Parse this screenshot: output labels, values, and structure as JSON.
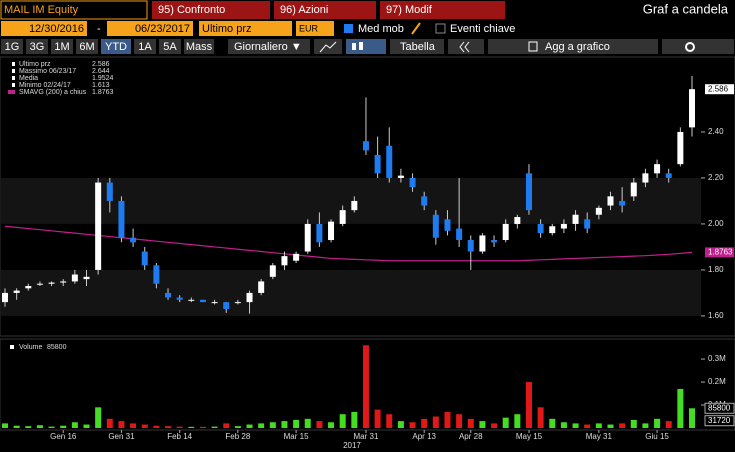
{
  "toolbar": {
    "security": "MAIL IM Equity",
    "tabs": [
      "95) Confronto",
      "96) Azioni",
      "97) Modif"
    ],
    "title": "Graf a candela",
    "start_date": "12/30/2016",
    "separator": "-",
    "end_date": "06/23/2017",
    "field": "Ultimo prz",
    "currency": "EUR",
    "moving_avg": "Med mob",
    "key_events": "Eventi chiave",
    "periods": [
      "1G",
      "3G",
      "1M",
      "6M",
      "YTD",
      "1A",
      "5A",
      "Mass"
    ],
    "frequency": "Giornaliero ▼",
    "table": "Tabella",
    "add": "Agg a grafico"
  },
  "chart_data": {
    "type": "candlestick",
    "categories": [
      null,
      null,
      null,
      null,
      null,
      "Gen 16",
      null,
      null,
      null,
      null,
      "Gen 31",
      null,
      null,
      null,
      null,
      "Feb 14",
      null,
      null,
      null,
      null,
      "Feb 28",
      null,
      null,
      null,
      null,
      "Mar 15",
      null,
      null,
      null,
      null,
      null,
      "Mar 31",
      null,
      null,
      null,
      null,
      "Apr 13",
      null,
      null,
      null,
      "Apr 28",
      null,
      null,
      null,
      null,
      "May 15",
      null,
      null,
      null,
      null,
      null,
      "May 31",
      null,
      null,
      null,
      null,
      "Giu 15",
      null,
      null,
      null
    ],
    "year_label": "2017",
    "open": [
      1.66,
      1.7,
      1.72,
      1.74,
      1.74,
      1.745,
      1.75,
      1.76,
      1.8,
      2.18,
      2.1,
      1.94,
      1.88,
      1.82,
      1.7,
      1.68,
      1.67,
      1.67,
      1.66,
      1.66,
      1.66,
      1.66,
      1.7,
      1.77,
      1.82,
      1.84,
      1.88,
      2.0,
      1.93,
      2.0,
      2.06,
      2.36,
      2.3,
      2.34,
      2.2,
      2.2,
      2.12,
      2.04,
      2.02,
      1.98,
      1.93,
      1.88,
      1.93,
      1.93,
      2.0,
      2.22,
      2.0,
      1.96,
      1.98,
      2.0,
      2.02,
      2.04,
      2.08,
      2.1,
      2.12,
      2.18,
      2.22,
      2.22,
      2.26,
      2.42
    ],
    "high": [
      1.72,
      1.72,
      1.74,
      1.75,
      1.75,
      1.76,
      1.8,
      1.8,
      2.2,
      2.2,
      2.12,
      1.98,
      1.9,
      1.83,
      1.72,
      1.69,
      1.68,
      1.67,
      1.67,
      1.66,
      1.67,
      1.71,
      1.76,
      1.83,
      1.88,
      1.88,
      2.02,
      2.05,
      2.02,
      2.08,
      2.12,
      2.55,
      2.38,
      2.42,
      2.24,
      2.22,
      2.14,
      2.06,
      2.06,
      2.2,
      1.95,
      1.96,
      1.95,
      2.02,
      2.04,
      2.26,
      2.02,
      2.0,
      2.02,
      2.06,
      2.05,
      2.08,
      2.14,
      2.16,
      2.2,
      2.24,
      2.28,
      2.24,
      2.42,
      2.644
    ],
    "low": [
      1.64,
      1.67,
      1.71,
      1.73,
      1.73,
      1.73,
      1.74,
      1.73,
      1.78,
      2.05,
      1.92,
      1.9,
      1.8,
      1.72,
      1.67,
      1.66,
      1.66,
      1.66,
      1.65,
      1.613,
      1.65,
      1.61,
      1.69,
      1.76,
      1.8,
      1.83,
      1.87,
      1.9,
      1.92,
      1.99,
      2.05,
      2.3,
      2.2,
      2.18,
      2.18,
      2.14,
      2.06,
      1.91,
      1.95,
      1.9,
      1.8,
      1.87,
      1.9,
      1.92,
      1.98,
      2.04,
      1.94,
      1.95,
      1.96,
      1.97,
      1.96,
      2.02,
      2.06,
      2.05,
      2.1,
      2.16,
      2.2,
      2.18,
      2.25,
      2.38
    ],
    "close": [
      1.7,
      1.71,
      1.73,
      1.74,
      1.745,
      1.75,
      1.78,
      1.77,
      2.18,
      2.1,
      1.94,
      1.92,
      1.82,
      1.74,
      1.68,
      1.67,
      1.67,
      1.66,
      1.66,
      1.63,
      1.66,
      1.7,
      1.75,
      1.82,
      1.86,
      1.87,
      2.0,
      1.92,
      2.01,
      2.06,
      2.1,
      2.32,
      2.22,
      2.2,
      2.21,
      2.16,
      2.08,
      1.94,
      1.97,
      1.93,
      1.88,
      1.95,
      1.92,
      2.0,
      2.03,
      2.06,
      1.96,
      1.99,
      2.0,
      2.04,
      1.98,
      2.07,
      2.12,
      2.08,
      2.18,
      2.22,
      2.26,
      2.2,
      2.4,
      2.586
    ],
    "up_color": "#ffffff",
    "down_color": "#1e7cf0",
    "ylim": [
      1.517,
      2.726
    ],
    "yticks": [
      {
        "value": 1.6,
        "label": "1.60"
      },
      {
        "value": 1.8,
        "label": "1.80"
      },
      {
        "value": 2.0,
        "label": "2.00"
      },
      {
        "value": 2.2,
        "label": "2.20"
      },
      {
        "value": 2.4,
        "label": "2.40"
      }
    ],
    "legend": {
      "last": "Ultimo prz",
      "max": "Massimo 06/23/17",
      "mean": {
        "name": "Media",
        "value": 1.9524
      },
      "min": "Minimo 02/24/17"
    },
    "series": [
      {
        "name": "SMAVG (200) a chius",
        "color": "#c0208c",
        "values": [
          1.99,
          1.985,
          1.98,
          1.975,
          1.97,
          1.965,
          1.96,
          1.955,
          1.95,
          1.945,
          1.94,
          1.935,
          1.93,
          1.925,
          1.92,
          1.915,
          1.91,
          1.905,
          1.9,
          1.895,
          1.89,
          1.885,
          1.88,
          1.875,
          1.87,
          1.865,
          1.86,
          1.855,
          1.85,
          1.848,
          1.846,
          1.844,
          1.842,
          1.84,
          1.84,
          1.84,
          1.84,
          1.84,
          1.84,
          1.84,
          1.84,
          1.84,
          1.84,
          1.84,
          1.84,
          1.842,
          1.844,
          1.846,
          1.848,
          1.85,
          1.852,
          1.854,
          1.856,
          1.858,
          1.86,
          1.862,
          1.865,
          1.868,
          1.872,
          1.8763
        ]
      }
    ],
    "volume": {
      "type": "bar",
      "name": "Volume",
      "values": [
        20000,
        10000,
        8000,
        12000,
        6000,
        10000,
        25000,
        15000,
        90000,
        40000,
        30000,
        20000,
        15000,
        10000,
        8000,
        6000,
        5000,
        5000,
        6000,
        20000,
        8000,
        15000,
        20000,
        25000,
        30000,
        35000,
        40000,
        30000,
        25000,
        60000,
        70000,
        360000,
        80000,
        60000,
        30000,
        25000,
        40000,
        50000,
        70000,
        60000,
        40000,
        30000,
        20000,
        45000,
        60000,
        200000,
        90000,
        40000,
        25000,
        20000,
        15000,
        20000,
        15000,
        20000,
        35000,
        20000,
        40000,
        30000,
        170000,
        85800
      ],
      "up_color": "#44dd22",
      "down_color": "#e01818",
      "ylim": [
        0,
        383000
      ],
      "yticks": [
        {
          "value": 100000,
          "label": "0.1M"
        },
        {
          "value": 200000,
          "label": "0.2M"
        },
        {
          "value": 300000,
          "label": "0.3M"
        }
      ],
      "avg_label": 31720
    }
  }
}
